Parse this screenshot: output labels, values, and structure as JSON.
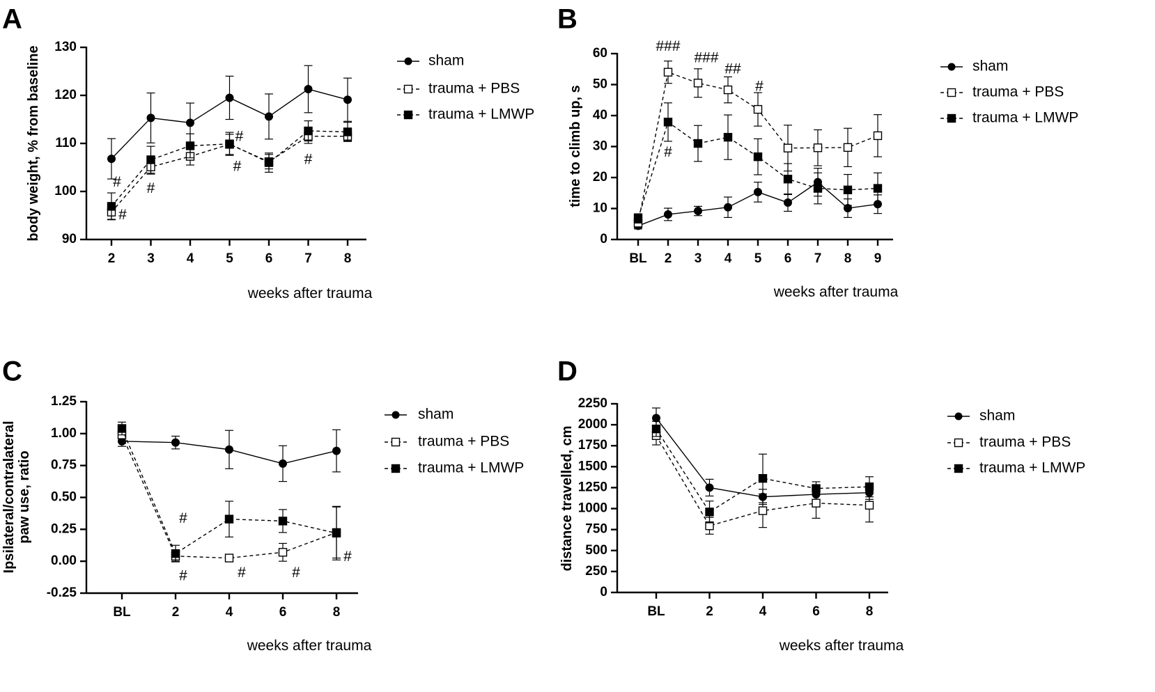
{
  "figure": {
    "legend": [
      {
        "key": "sham",
        "label": "sham"
      },
      {
        "key": "pbs",
        "label": "trauma + PBS"
      },
      {
        "key": "lmwp",
        "label": "trauma + LMWP"
      }
    ]
  },
  "chart_data": [
    {
      "panel": "A",
      "type": "line",
      "title": "",
      "ylabel": "body weight, %  from baseline",
      "xlabel": "weeks after trauma",
      "categories": [
        "2",
        "3",
        "4",
        "5",
        "6",
        "7",
        "8"
      ],
      "ylim": [
        90,
        130
      ],
      "yticks": [
        90,
        100,
        110,
        120,
        130
      ],
      "series": [
        {
          "key": "sham",
          "name": "sham",
          "values": [
            106.8,
            115.3,
            114.3,
            119.5,
            115.6,
            121.3,
            119.1
          ],
          "errors": [
            4.2,
            5.2,
            4.1,
            4.5,
            4.7,
            4.9,
            4.5
          ]
        },
        {
          "key": "pbs",
          "name": "trauma + PBS",
          "values": [
            95.7,
            105.1,
            107.3,
            109.8,
            106.2,
            111.5,
            111.5
          ],
          "errors": [
            1.5,
            1.5,
            1.8,
            2.1,
            1.5,
            1.5,
            1.0
          ]
        },
        {
          "key": "lmwp",
          "name": "trauma + LMWP",
          "values": [
            96.9,
            106.6,
            109.5,
            109.9,
            106.0,
            112.6,
            112.4
          ],
          "errors": [
            2.8,
            2.8,
            2.5,
            2.4,
            2.0,
            2.1,
            2.0
          ]
        }
      ],
      "annotations": [
        {
          "text": "#",
          "x": "2",
          "y": 101.8,
          "dx": 8
        },
        {
          "text": "#",
          "x": "2",
          "y": 95.0,
          "dx": 16
        },
        {
          "text": "#",
          "x": "3",
          "y": 100.5,
          "dx": 0
        },
        {
          "text": "#",
          "x": "5",
          "y": 111.3,
          "dx": 14
        },
        {
          "text": "#",
          "x": "5",
          "y": 105.1,
          "dx": 11
        },
        {
          "text": "#",
          "x": "7",
          "y": 106.5,
          "dx": 0
        }
      ]
    },
    {
      "panel": "B",
      "type": "line",
      "title": "",
      "ylabel": "time to climb up, s",
      "xlabel": "weeks after trauma",
      "categories": [
        "BL",
        "2",
        "3",
        "4",
        "5",
        "6",
        "7",
        "8",
        "9"
      ],
      "ylim": [
        0,
        60
      ],
      "yticks": [
        0,
        10,
        20,
        30,
        40,
        50,
        60
      ],
      "series": [
        {
          "key": "sham",
          "name": "sham",
          "values": [
            4.4,
            8.1,
            9.2,
            10.4,
            15.3,
            11.9,
            18.5,
            10.1,
            11.4
          ],
          "errors": [
            1.0,
            2.0,
            1.5,
            3.3,
            3.2,
            2.8,
            4.5,
            3.0,
            3.0
          ]
        },
        {
          "key": "pbs",
          "name": "trauma + PBS",
          "values": [
            5.3,
            54.0,
            50.5,
            48.3,
            42.0,
            29.5,
            29.6,
            29.7,
            33.5
          ],
          "errors": [
            1.5,
            3.6,
            4.6,
            4.2,
            5.4,
            7.4,
            5.8,
            6.2,
            6.8
          ]
        },
        {
          "key": "lmwp",
          "name": "trauma + LMWP",
          "values": [
            6.8,
            37.9,
            31.0,
            33.0,
            26.7,
            19.5,
            16.5,
            16.0,
            16.5
          ],
          "errors": [
            1.5,
            6.2,
            5.8,
            7.2,
            5.8,
            5.0,
            5.0,
            5.0,
            5.0
          ]
        }
      ],
      "annotations": [
        {
          "text": "###",
          "x": "2",
          "y": 62.2,
          "dx": 0
        },
        {
          "text": "###",
          "x": "3",
          "y": 58.4,
          "dx": 12
        },
        {
          "text": "##",
          "x": "4",
          "y": 54.8,
          "dx": 7
        },
        {
          "text": "#",
          "x": "5",
          "y": 49.2,
          "dx": 2
        },
        {
          "text": "#",
          "x": "2",
          "y": 28.0,
          "dx": 0
        }
      ]
    },
    {
      "panel": "C",
      "type": "line",
      "title": "",
      "ylabel": "Ipsilateral/contralateral\npaw use, ratio",
      "xlabel": "weeks after trauma",
      "categories": [
        "BL",
        "2",
        "4",
        "6",
        "8"
      ],
      "ylim": [
        -0.25,
        1.25
      ],
      "yticks": [
        -0.25,
        0.0,
        0.25,
        0.5,
        0.75,
        1.0,
        1.25
      ],
      "ytick_labels": [
        "-0.25",
        "0.00",
        "0.25",
        "0.50",
        "0.75",
        "1.00",
        "1.25"
      ],
      "series": [
        {
          "key": "sham",
          "name": "sham",
          "values": [
            0.94,
            0.93,
            0.875,
            0.765,
            0.865
          ],
          "errors": [
            0.04,
            0.05,
            0.15,
            0.14,
            0.165
          ]
        },
        {
          "key": "pbs",
          "name": "trauma + PBS",
          "values": [
            0.99,
            0.04,
            0.025,
            0.07,
            0.225
          ],
          "errors": [
            0.05,
            0.04,
            0.025,
            0.07,
            0.2
          ]
        },
        {
          "key": "lmwp",
          "name": "trauma + LMWP",
          "values": [
            1.04,
            0.06,
            0.33,
            0.315,
            0.22
          ],
          "errors": [
            0.05,
            0.065,
            0.14,
            0.09,
            0.21
          ]
        }
      ],
      "annotations": [
        {
          "text": "#",
          "x": "2",
          "y": 0.33,
          "dx": 11
        },
        {
          "text": "#",
          "x": "2",
          "y": -0.12,
          "dx": 11
        },
        {
          "text": "#",
          "x": "4",
          "y": -0.095,
          "dx": 18
        },
        {
          "text": "#",
          "x": "6",
          "y": -0.095,
          "dx": 19
        },
        {
          "text": "#",
          "x": "8",
          "y": 0.03,
          "dx": 16
        }
      ]
    },
    {
      "panel": "D",
      "type": "line",
      "title": "",
      "ylabel": "distance travelled, cm",
      "xlabel": "weeks after trauma",
      "categories": [
        "BL",
        "2",
        "4",
        "6",
        "8"
      ],
      "ylim": [
        0,
        2250
      ],
      "yticks": [
        0,
        250,
        500,
        750,
        1000,
        1250,
        1500,
        1750,
        2000,
        2250
      ],
      "series": [
        {
          "key": "sham",
          "name": "sham",
          "values": [
            2080,
            1250,
            1140,
            1170,
            1190
          ],
          "errors": [
            120,
            100,
            90,
            90,
            80
          ]
        },
        {
          "key": "pbs",
          "name": "trauma + PBS",
          "values": [
            1870,
            795,
            975,
            1065,
            1040
          ],
          "errors": [
            110,
            100,
            200,
            180,
            200
          ]
        },
        {
          "key": "lmwp",
          "name": "trauma + LMWP",
          "values": [
            1950,
            960,
            1360,
            1240,
            1260
          ],
          "errors": [
            90,
            130,
            290,
            80,
            120
          ]
        }
      ],
      "annotations": []
    }
  ]
}
